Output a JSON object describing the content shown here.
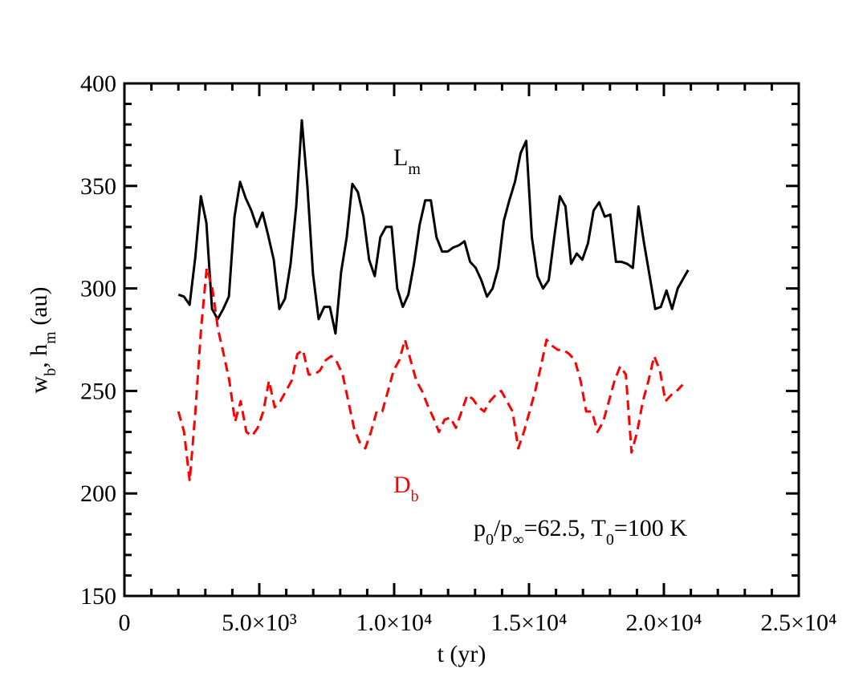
{
  "chart_data": {
    "type": "line",
    "xlabel": "t (yr)",
    "ylabel": [
      "w",
      "b",
      ", h",
      "m",
      " (au)"
    ],
    "xlim": [
      0,
      25000
    ],
    "ylim": [
      150,
      400
    ],
    "xticks": [
      0,
      {
        "value": 5000,
        "label": "5.0×10³"
      },
      {
        "value": 10000,
        "label": "1.0×10⁴"
      },
      {
        "value": 15000,
        "label": "1.5×10⁴"
      },
      {
        "value": 20000,
        "label": "2.0×10⁴"
      },
      {
        "value": 25000,
        "label": "2.5×10⁴"
      }
    ],
    "yticks": [
      150,
      200,
      250,
      300,
      350,
      400
    ],
    "series": [
      {
        "color": "#000000",
        "line_style": "solid",
        "x": [
          2000,
          2208,
          2416,
          2624,
          2832,
          3040,
          3248,
          3456,
          3664,
          3872,
          4080,
          4288,
          4496,
          4704,
          4912,
          5120,
          5328,
          5536,
          5744,
          5952,
          6160,
          6368,
          6576,
          6784,
          6992,
          7200,
          7408,
          7616,
          7824,
          8032,
          8240,
          8448,
          8656,
          8864,
          9072,
          9280,
          9488,
          9696,
          9904,
          10112,
          10320,
          10528,
          10736,
          10944,
          11152,
          11360,
          11568,
          11776,
          11984,
          12192,
          12400,
          12608,
          12816,
          13024,
          13232,
          13440,
          13648,
          13856,
          14064,
          14272,
          14480,
          14688,
          14896,
          15104,
          15312,
          15520,
          15728,
          15936,
          16144,
          16352,
          16560,
          16768,
          16976,
          17184,
          17392,
          17600,
          17808,
          18016,
          18224,
          18432,
          18640,
          18848,
          19056,
          19264,
          19472,
          19680,
          19888,
          20096,
          20304,
          20512,
          20900
        ],
        "values": [
          297,
          296,
          292,
          315,
          345,
          332,
          290,
          285,
          290,
          296,
          335,
          352,
          344,
          338,
          330,
          337,
          326,
          314,
          290,
          295,
          312,
          340,
          382,
          350,
          307,
          285,
          291,
          291,
          278,
          308,
          325,
          351,
          347,
          335,
          314,
          306,
          325,
          330,
          330,
          300,
          291,
          297,
          312,
          331,
          343,
          343,
          325,
          318,
          318,
          320,
          321,
          323,
          313,
          310,
          304,
          296,
          300,
          310,
          333,
          343,
          352,
          366,
          372,
          325,
          306,
          300,
          304,
          325,
          345,
          340,
          312,
          317,
          314,
          322,
          338,
          342,
          335,
          336,
          313,
          313,
          312,
          310,
          340,
          322,
          306,
          290,
          291,
          299,
          290,
          300,
          309
        ]
      },
      {
        "color": "#ff0000",
        "line_style": "dashed",
        "x": [
          2000,
          2210,
          2420,
          2630,
          2840,
          3050,
          3260,
          3470,
          3680,
          3890,
          4100,
          4310,
          4520,
          4730,
          4940,
          5150,
          5360,
          5570,
          5780,
          5990,
          6200,
          6410,
          6620,
          6830,
          7040,
          7250,
          7460,
          7670,
          7880,
          8090,
          8300,
          8510,
          8720,
          8930,
          9140,
          9350,
          9560,
          9770,
          9980,
          10190,
          10400,
          10610,
          10820,
          11030,
          11240,
          11450,
          11660,
          11870,
          12080,
          12290,
          12500,
          12710,
          12920,
          13130,
          13340,
          13550,
          13760,
          13970,
          14180,
          14390,
          14600,
          14810,
          15020,
          15230,
          15440,
          15650,
          15860,
          16070,
          16280,
          16490,
          16700,
          16910,
          17120,
          17330,
          17540,
          17750,
          17960,
          18170,
          18380,
          18590,
          18800,
          19010,
          19220,
          19430,
          19640,
          19850,
          20060,
          20270,
          20480,
          20690
        ],
        "values": [
          240,
          230,
          206,
          240,
          280,
          310,
          300,
          280,
          268,
          255,
          235,
          245,
          230,
          228,
          232,
          240,
          255,
          242,
          245,
          250,
          255,
          268,
          270,
          258,
          258,
          260,
          265,
          267,
          264,
          258,
          245,
          232,
          225,
          222,
          230,
          240,
          240,
          250,
          260,
          265,
          275,
          265,
          255,
          250,
          243,
          237,
          230,
          236,
          237,
          232,
          240,
          248,
          246,
          242,
          240,
          245,
          248,
          250,
          245,
          240,
          222,
          230,
          240,
          250,
          262,
          275,
          272,
          270,
          270,
          268,
          265,
          255,
          240,
          240,
          230,
          235,
          245,
          255,
          262,
          258,
          220,
          230,
          245,
          255,
          267,
          260,
          245,
          248,
          250,
          253
        ]
      }
    ],
    "annotations": [
      {
        "text": [
          "L",
          "m"
        ],
        "color": "#000000"
      },
      {
        "text": [
          "D",
          "b"
        ],
        "color": "#ff0000"
      },
      {
        "text": [
          "p",
          "0",
          "/p",
          "∞",
          "=62.5, T",
          "0",
          "=100 K"
        ],
        "color": "#000000"
      }
    ]
  }
}
